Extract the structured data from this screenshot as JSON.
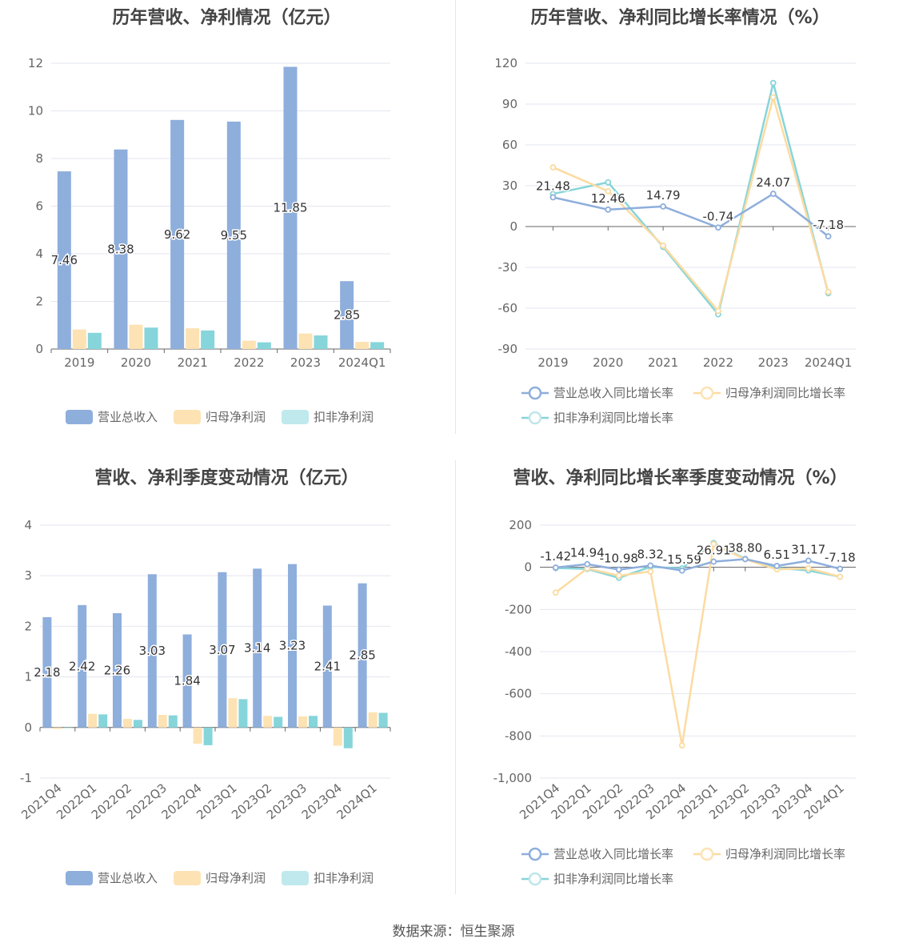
{
  "colors": {
    "revenue": "#8eaedc",
    "parent_profit": "#fde2b3",
    "deducted_profit": "#86d5da",
    "revenue_line": "#8eaedc",
    "parent_line": "#fcdba1",
    "deducted_line": "#86d5da",
    "grid": "#e3e6ef",
    "axis": "#666666"
  },
  "source_text": "数据来源：恒生聚源",
  "chart_data": [
    {
      "id": "annual-amount",
      "type": "bar",
      "title": "历年营收、净利情况（亿元）",
      "categories": [
        "2019",
        "2020",
        "2021",
        "2022",
        "2023",
        "2024Q1"
      ],
      "ylim": [
        0,
        12
      ],
      "yticks": [
        0,
        2,
        4,
        6,
        8,
        10,
        12
      ],
      "ytick_labels": [
        "0",
        "2",
        "4",
        "6",
        "8",
        "10",
        "12"
      ],
      "grid": true,
      "legend_position": "bottom",
      "series": [
        {
          "name": "营业总收入",
          "values": [
            7.46,
            8.38,
            9.62,
            9.55,
            11.85,
            2.85
          ],
          "labels": [
            "7.46",
            "8.38",
            "9.62",
            "9.55",
            "11.85",
            "2.85"
          ]
        },
        {
          "name": "归母净利润",
          "values": [
            0.82,
            1.02,
            0.87,
            0.35,
            0.65,
            0.3
          ]
        },
        {
          "name": "扣非净利润",
          "values": [
            0.68,
            0.9,
            0.78,
            0.28,
            0.57,
            0.29
          ]
        }
      ]
    },
    {
      "id": "annual-growth",
      "type": "line",
      "title": "历年营收、净利同比增长率情况（%）",
      "categories": [
        "2019",
        "2020",
        "2021",
        "2022",
        "2023",
        "2024Q1"
      ],
      "ylim": [
        -90,
        120
      ],
      "yticks": [
        -90,
        -60,
        -30,
        0,
        30,
        60,
        90,
        120
      ],
      "ytick_labels": [
        "-90",
        "-60",
        "-30",
        "0",
        "30",
        "60",
        "90",
        "120"
      ],
      "grid": true,
      "legend_position": "bottom",
      "series": [
        {
          "name": "营业总收入同比增长率",
          "values": [
            21.48,
            12.46,
            14.79,
            -0.74,
            24.07,
            -7.18
          ],
          "labels": [
            "21.48",
            "12.46",
            "14.79",
            "-0.74",
            "24.07",
            "-7.18"
          ]
        },
        {
          "name": "归母净利润同比增长率",
          "values": [
            43.5,
            26.0,
            -14.0,
            -62.0,
            95.0,
            -48.0
          ]
        },
        {
          "name": "扣非净利润同比增长率",
          "values": [
            24.0,
            32.5,
            -15.0,
            -64.5,
            105.5,
            -49.0
          ]
        }
      ]
    },
    {
      "id": "quarterly-amount",
      "type": "bar",
      "title": "营收、净利季度变动情况（亿元）",
      "categories": [
        "2021Q4",
        "2022Q1",
        "2022Q2",
        "2022Q3",
        "2022Q4",
        "2023Q1",
        "2023Q2",
        "2023Q3",
        "2023Q4",
        "2024Q1"
      ],
      "ylim": [
        -1,
        4
      ],
      "yticks": [
        -1,
        0,
        1,
        2,
        3,
        4
      ],
      "ytick_labels": [
        "-1",
        "0",
        "1",
        "2",
        "3",
        "4"
      ],
      "grid": true,
      "legend_position": "bottom",
      "series": [
        {
          "name": "营业总收入",
          "values": [
            2.18,
            2.42,
            2.26,
            3.03,
            1.84,
            3.07,
            3.14,
            3.23,
            2.41,
            2.85
          ],
          "labels": [
            "2.18",
            "2.42",
            "2.26",
            "3.03",
            "1.84",
            "3.07",
            "3.14",
            "3.23",
            "2.41",
            "2.85"
          ]
        },
        {
          "name": "归母净利润",
          "values": [
            -0.03,
            0.27,
            0.17,
            0.25,
            -0.32,
            0.58,
            0.23,
            0.22,
            -0.36,
            0.3
          ]
        },
        {
          "name": "扣非净利润",
          "values": [
            -0.01,
            0.26,
            0.15,
            0.24,
            -0.35,
            0.56,
            0.21,
            0.23,
            -0.41,
            0.29
          ]
        }
      ]
    },
    {
      "id": "quarterly-growth",
      "type": "line",
      "title": "营收、净利同比增长率季度变动情况（%）",
      "categories": [
        "2021Q4",
        "2022Q1",
        "2022Q2",
        "2022Q3",
        "2022Q4",
        "2023Q1",
        "2023Q2",
        "2023Q3",
        "2023Q4",
        "2024Q1"
      ],
      "ylim": [
        -1000,
        200
      ],
      "yticks": [
        -1000,
        -800,
        -600,
        -400,
        -200,
        0,
        200
      ],
      "ytick_labels": [
        "-1,000",
        "-800",
        "-600",
        "-400",
        "-200",
        "0",
        "200"
      ],
      "grid": true,
      "legend_position": "bottom",
      "series": [
        {
          "name": "营业总收入同比增长率",
          "values": [
            -1.42,
            14.94,
            -10.98,
            8.32,
            -15.59,
            26.91,
            38.8,
            6.51,
            31.17,
            -7.18
          ],
          "labels": [
            "-1.42",
            "14.94",
            "-10.98",
            "8.32",
            "-15.59",
            "26.91",
            "38.80",
            "6.51",
            "31.17",
            "-7.18"
          ]
        },
        {
          "name": "归母净利润同比增长率",
          "values": [
            -120,
            -5,
            -40,
            -20,
            -845,
            110,
            38,
            -10,
            -5,
            -45
          ]
        },
        {
          "name": "扣非净利润同比增长率",
          "values": [
            -3,
            -8,
            -50,
            2,
            -5,
            115,
            40,
            -3,
            -15,
            -45
          ]
        }
      ]
    }
  ]
}
